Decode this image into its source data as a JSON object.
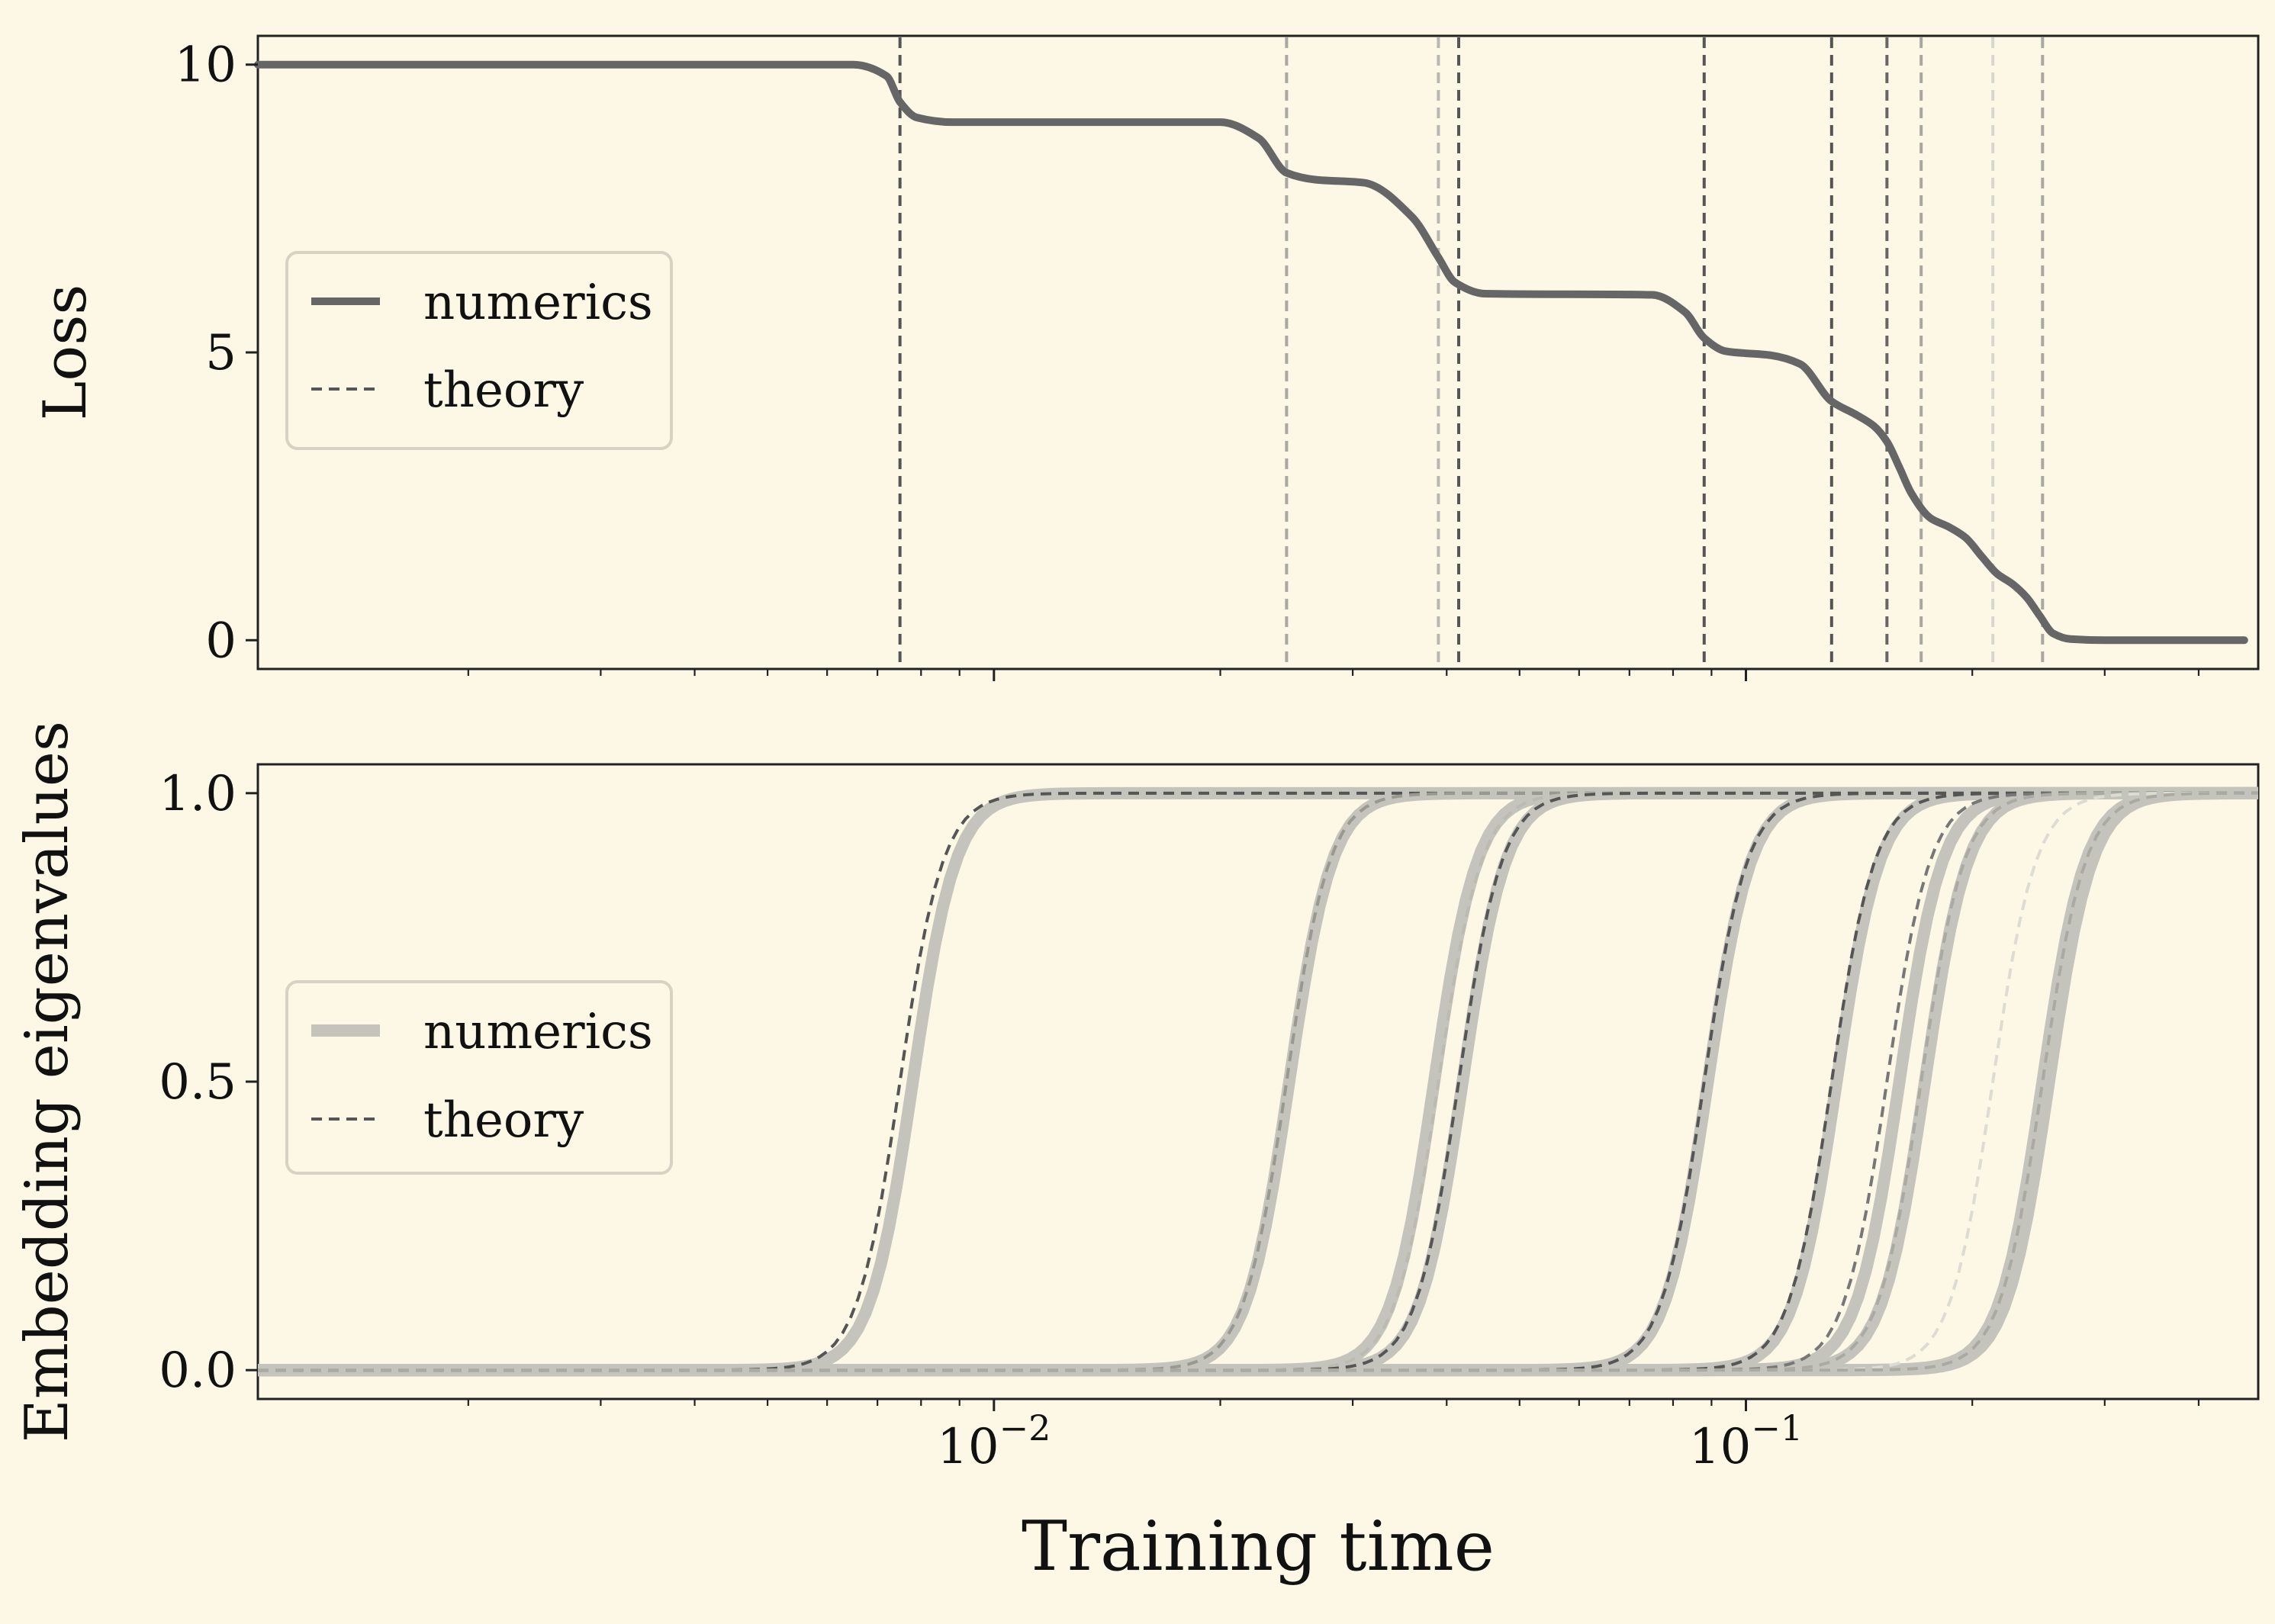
{
  "chart_data": [
    {
      "type": "line",
      "ylabel": "Loss",
      "xscale": "log",
      "xlim": [
        0.00105,
        0.48
      ],
      "ylim": [
        -0.5,
        10.5
      ],
      "yticks": [
        0,
        5,
        10
      ],
      "ytick_labels": [
        "0",
        "5",
        "10"
      ],
      "legend": {
        "placement": "center-left",
        "entries": [
          {
            "label": "numerics",
            "style": "solid"
          },
          {
            "label": "theory",
            "style": "dashed"
          }
        ]
      },
      "transitions": [
        0.0075,
        0.0245,
        0.039,
        0.0415,
        0.088,
        0.13,
        0.154,
        0.171,
        0.213,
        0.248
      ],
      "theory_line_colors": [
        "#555555",
        "#a8a8a0",
        "#b8b8b0",
        "#555555",
        "#555555",
        "#555555",
        "#666666",
        "#a8a8a0",
        "#d6d6cc",
        "#a8a8a0"
      ],
      "numerics": {
        "x": [
          0.00105,
          0.0065,
          0.0072,
          0.0075,
          0.0079,
          0.0088,
          0.02,
          0.0225,
          0.0245,
          0.0268,
          0.031,
          0.036,
          0.039,
          0.041,
          0.045,
          0.075,
          0.083,
          0.088,
          0.094,
          0.108,
          0.118,
          0.13,
          0.14,
          0.148,
          0.154,
          0.16,
          0.166,
          0.176,
          0.186,
          0.196,
          0.206,
          0.216,
          0.226,
          0.236,
          0.246,
          0.256,
          0.27,
          0.3,
          0.46
        ],
        "y": [
          10,
          10,
          9.8,
          9.35,
          9.08,
          9.0,
          9.0,
          8.72,
          8.12,
          8.0,
          7.95,
          7.35,
          6.65,
          6.22,
          6.02,
          6.0,
          5.7,
          5.25,
          5.02,
          4.95,
          4.8,
          4.15,
          3.92,
          3.72,
          3.45,
          3.0,
          2.55,
          2.12,
          1.97,
          1.78,
          1.45,
          1.15,
          0.98,
          0.75,
          0.42,
          0.12,
          0.02,
          0.0,
          0.0
        ],
        "color": "#666666"
      }
    },
    {
      "type": "line",
      "xlabel": "Training time",
      "ylabel": "Embedding eigenvalues",
      "xscale": "log",
      "xlim": [
        0.00105,
        0.48
      ],
      "ylim": [
        -0.05,
        1.05
      ],
      "yticks": [
        0.0,
        0.5,
        1.0
      ],
      "ytick_labels": [
        "0.0",
        "0.5",
        "1.0"
      ],
      "xticks": [
        0.01,
        0.1
      ],
      "xtick_labels": [
        {
          "base": "10",
          "exp": "−2"
        },
        {
          "base": "10",
          "exp": "−1"
        }
      ],
      "legend": {
        "placement": "center-left",
        "entries": [
          {
            "label": "numerics",
            "style": "solid"
          },
          {
            "label": "theory",
            "style": "dashed"
          }
        ]
      },
      "numerics_color": "#c4c4bc",
      "series": [
        {
          "t_numerics": 0.0078,
          "t_theory": 0.0075,
          "theory_color": "#555555"
        },
        {
          "t_numerics": 0.0247,
          "t_theory": 0.0245,
          "theory_color": "#999990"
        },
        {
          "t_numerics": 0.0385,
          "t_theory": 0.039,
          "theory_color": "#bbbbb2"
        },
        {
          "t_numerics": 0.042,
          "t_theory": 0.0415,
          "theory_color": "#555555"
        },
        {
          "t_numerics": 0.089,
          "t_theory": 0.088,
          "theory_color": "#555555"
        },
        {
          "t_numerics": 0.132,
          "t_theory": 0.13,
          "theory_color": "#555555"
        },
        {
          "t_numerics": 0.16,
          "t_theory": 0.154,
          "theory_color": "#777777"
        },
        {
          "t_numerics": 0.173,
          "t_theory": 0.171,
          "theory_color": "#aaaaa2"
        },
        {
          "t_numerics": 0.248,
          "t_theory": 0.213,
          "theory_color": "#dcdcd2"
        },
        {
          "t_numerics": 0.253,
          "t_theory": 0.248,
          "theory_color": "#aaaaa2"
        }
      ]
    }
  ]
}
